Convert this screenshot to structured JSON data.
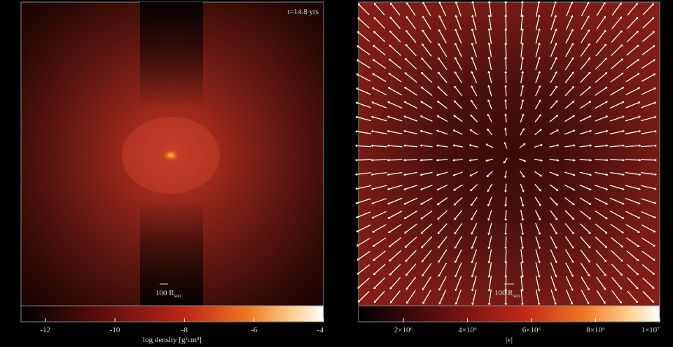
{
  "panels": [
    {
      "annotation": "t=14.8 yrs",
      "scale_label": {
        "text": "100 R",
        "subscript": "sun"
      },
      "colorbar": {
        "label": "log density [g/cm³]",
        "lim": [
          -12.7,
          -4
        ],
        "ticks": [
          -12,
          -10,
          -8,
          -6,
          -4
        ]
      }
    },
    {
      "scale_label": {
        "text": "100 R",
        "subscript": "sun"
      },
      "colorbar": {
        "label": "|v|",
        "lim": [
          600000,
          10000000
        ],
        "ticks": [
          {
            "value": 2000000,
            "label": "2×10⁶"
          },
          {
            "value": 4000000,
            "label": "4×10⁶"
          },
          {
            "value": 6000000,
            "label": "6×10⁶"
          },
          {
            "value": 8000000,
            "label": "8×10⁶"
          },
          {
            "value": 10000000,
            "label": "1×10⁷"
          }
        ]
      }
    }
  ]
}
